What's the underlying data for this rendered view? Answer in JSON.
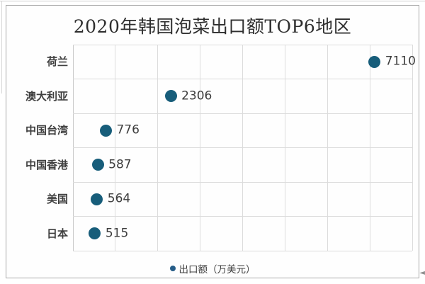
{
  "colors": {
    "dot": "#175d7a",
    "legend_marker": "#255c87",
    "grid": "#dcdcdc",
    "axis": "#c9c9c9",
    "frame_border": "#a8a8a8",
    "title_text": "#2e2e2e",
    "category_text": "#3f3f3f",
    "value_text": "#3d3d3d",
    "background": "#ffffff"
  },
  "corner_mark_glyph": "◄",
  "chart_data": {
    "type": "scatter",
    "orientation": "horizontal",
    "title": "2020年韩国泡菜出口额TOP6地区",
    "categories": [
      "荷兰",
      "澳大利亚",
      "中国台湾",
      "中国香港",
      "美国",
      "日本"
    ],
    "values": [
      7110,
      2306,
      776,
      587,
      564,
      515
    ],
    "xlabel": "",
    "ylabel": "",
    "xlim": [
      0,
      8000
    ],
    "x_gridline_step": 1000,
    "grid": true,
    "data_labels": true,
    "legend_label": "出口额（万美元）",
    "legend_position": "bottom"
  }
}
